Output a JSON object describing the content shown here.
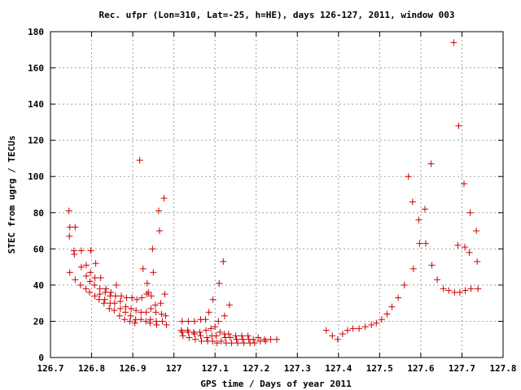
{
  "chart_data": {
    "type": "scatter",
    "title": "Rec. ufpr (Lon=310, Lat=-25, h=HE), days 126-127, 2011, window 003",
    "xlabel": "GPS time / Days of year 2011",
    "ylabel": "STEC from ugrg / TECUs",
    "xlim": [
      126.7,
      127.8
    ],
    "ylim": [
      0,
      180
    ],
    "x_ticks": [
      126.7,
      126.8,
      126.9,
      127.0,
      127.1,
      127.2,
      127.3,
      127.4,
      127.5,
      127.6,
      127.7,
      127.8
    ],
    "x_tick_labels": [
      "126.7",
      "126.8",
      "126.9",
      "127",
      "127.1",
      "127.2",
      "127.3",
      "127.4",
      "127.5",
      "127.6",
      "127.7",
      "127.8"
    ],
    "y_ticks": [
      0,
      20,
      40,
      60,
      80,
      100,
      120,
      140,
      160,
      180
    ],
    "y_tick_labels": [
      "0",
      "20",
      "40",
      "60",
      "80",
      "100",
      "120",
      "140",
      "160",
      "180"
    ],
    "grid": true,
    "marker": "+",
    "color": "#cc0000",
    "series": [
      {
        "points": [
          [
            126.745,
            81
          ],
          [
            126.747,
            72
          ],
          [
            126.746,
            67
          ],
          [
            126.747,
            47
          ],
          [
            126.76,
            72
          ],
          [
            126.757,
            59
          ],
          [
            126.758,
            57
          ],
          [
            126.76,
            43
          ],
          [
            126.775,
            59
          ],
          [
            126.775,
            50
          ],
          [
            126.773,
            40
          ],
          [
            126.787,
            51
          ],
          [
            126.787,
            45
          ],
          [
            126.786,
            38
          ],
          [
            126.798,
            59
          ],
          [
            126.797,
            47
          ],
          [
            126.796,
            42
          ],
          [
            126.795,
            36
          ],
          [
            126.81,
            52
          ],
          [
            126.808,
            44
          ],
          [
            126.807,
            40
          ],
          [
            126.808,
            34
          ],
          [
            126.822,
            44
          ],
          [
            126.82,
            38
          ],
          [
            126.82,
            35
          ],
          [
            126.818,
            32
          ],
          [
            126.835,
            38
          ],
          [
            126.833,
            36
          ],
          [
            126.832,
            32
          ],
          [
            126.83,
            30
          ],
          [
            126.847,
            36
          ],
          [
            126.845,
            34
          ],
          [
            126.845,
            30
          ],
          [
            126.843,
            27
          ],
          [
            126.86,
            40
          ],
          [
            126.858,
            34
          ],
          [
            126.856,
            30
          ],
          [
            126.855,
            26
          ],
          [
            126.872,
            34
          ],
          [
            126.87,
            31
          ],
          [
            126.87,
            27
          ],
          [
            126.868,
            23
          ],
          [
            126.885,
            33
          ],
          [
            126.883,
            28
          ],
          [
            126.882,
            25
          ],
          [
            126.88,
            21
          ],
          [
            126.898,
            33
          ],
          [
            126.896,
            27
          ],
          [
            126.895,
            23
          ],
          [
            126.893,
            20
          ],
          [
            126.91,
            32
          ],
          [
            126.908,
            26
          ],
          [
            126.907,
            21
          ],
          [
            126.905,
            19
          ],
          [
            126.917,
            109
          ],
          [
            126.922,
            33
          ],
          [
            126.92,
            25
          ],
          [
            126.92,
            21
          ],
          [
            126.925,
            49
          ],
          [
            126.935,
            41
          ],
          [
            126.934,
            35
          ],
          [
            126.933,
            25
          ],
          [
            126.932,
            20
          ],
          [
            126.938,
            36
          ],
          [
            126.945,
            34
          ],
          [
            126.944,
            27
          ],
          [
            126.943,
            21
          ],
          [
            126.942,
            19
          ],
          [
            126.948,
            60
          ],
          [
            126.95,
            47
          ],
          [
            126.955,
            29
          ],
          [
            126.956,
            25
          ],
          [
            126.957,
            20
          ],
          [
            126.958,
            18
          ],
          [
            126.963,
            81
          ],
          [
            126.965,
            70
          ],
          [
            126.968,
            30
          ],
          [
            126.97,
            24
          ],
          [
            126.972,
            20
          ],
          [
            126.976,
            88
          ],
          [
            126.978,
            35
          ],
          [
            126.98,
            23
          ],
          [
            126.982,
            18
          ],
          [
            127.02,
            20
          ],
          [
            127.018,
            15
          ],
          [
            127.02,
            14
          ],
          [
            127.022,
            12
          ],
          [
            127.035,
            20
          ],
          [
            127.033,
            15
          ],
          [
            127.035,
            14
          ],
          [
            127.037,
            11
          ],
          [
            127.05,
            20
          ],
          [
            127.048,
            14
          ],
          [
            127.05,
            13
          ],
          [
            127.052,
            10
          ],
          [
            127.065,
            21
          ],
          [
            127.063,
            14
          ],
          [
            127.065,
            12
          ],
          [
            127.067,
            9
          ],
          [
            127.077,
            21
          ],
          [
            127.078,
            15
          ],
          [
            127.08,
            11
          ],
          [
            127.082,
            9
          ],
          [
            127.085,
            25
          ],
          [
            127.09,
            16
          ],
          [
            127.092,
            12
          ],
          [
            127.094,
            9
          ],
          [
            127.095,
            32
          ],
          [
            127.1,
            17
          ],
          [
            127.103,
            12
          ],
          [
            127.105,
            8
          ],
          [
            127.11,
            41
          ],
          [
            127.108,
            20
          ],
          [
            127.112,
            14
          ],
          [
            127.115,
            9
          ],
          [
            127.12,
            53
          ],
          [
            127.123,
            23
          ],
          [
            127.123,
            13
          ],
          [
            127.125,
            11
          ],
          [
            127.127,
            8
          ],
          [
            127.135,
            29
          ],
          [
            127.133,
            13
          ],
          [
            127.137,
            11
          ],
          [
            127.14,
            8
          ],
          [
            127.15,
            12
          ],
          [
            127.152,
            10
          ],
          [
            127.155,
            8
          ],
          [
            127.165,
            12
          ],
          [
            127.167,
            10
          ],
          [
            127.17,
            8
          ],
          [
            127.18,
            12
          ],
          [
            127.182,
            10
          ],
          [
            127.185,
            8
          ],
          [
            127.193,
            10
          ],
          [
            127.196,
            8
          ],
          [
            127.205,
            11
          ],
          [
            127.21,
            9
          ],
          [
            127.22,
            10
          ],
          [
            127.223,
            9
          ],
          [
            127.235,
            10
          ],
          [
            127.25,
            10
          ],
          [
            127.37,
            15
          ],
          [
            127.385,
            12
          ],
          [
            127.398,
            10
          ],
          [
            127.41,
            13
          ],
          [
            127.422,
            15
          ],
          [
            127.435,
            16
          ],
          [
            127.45,
            16
          ],
          [
            127.465,
            17
          ],
          [
            127.48,
            18
          ],
          [
            127.492,
            19
          ],
          [
            127.505,
            21
          ],
          [
            127.518,
            24
          ],
          [
            127.53,
            28
          ],
          [
            127.545,
            33
          ],
          [
            127.56,
            40
          ],
          [
            127.57,
            100
          ],
          [
            127.58,
            86
          ],
          [
            127.582,
            49
          ],
          [
            127.595,
            76
          ],
          [
            127.597,
            63
          ],
          [
            127.61,
            82
          ],
          [
            127.612,
            63
          ],
          [
            127.625,
            107
          ],
          [
            127.627,
            51
          ],
          [
            127.64,
            43
          ],
          [
            127.655,
            38
          ],
          [
            127.668,
            37
          ],
          [
            127.68,
            174
          ],
          [
            127.682,
            36
          ],
          [
            127.69,
            62
          ],
          [
            127.692,
            128
          ],
          [
            127.695,
            36
          ],
          [
            127.705,
            96
          ],
          [
            127.707,
            61
          ],
          [
            127.708,
            37
          ],
          [
            127.718,
            58
          ],
          [
            127.72,
            80
          ],
          [
            127.722,
            38
          ],
          [
            127.735,
            70
          ],
          [
            127.737,
            53
          ],
          [
            127.739,
            38
          ]
        ]
      }
    ]
  }
}
